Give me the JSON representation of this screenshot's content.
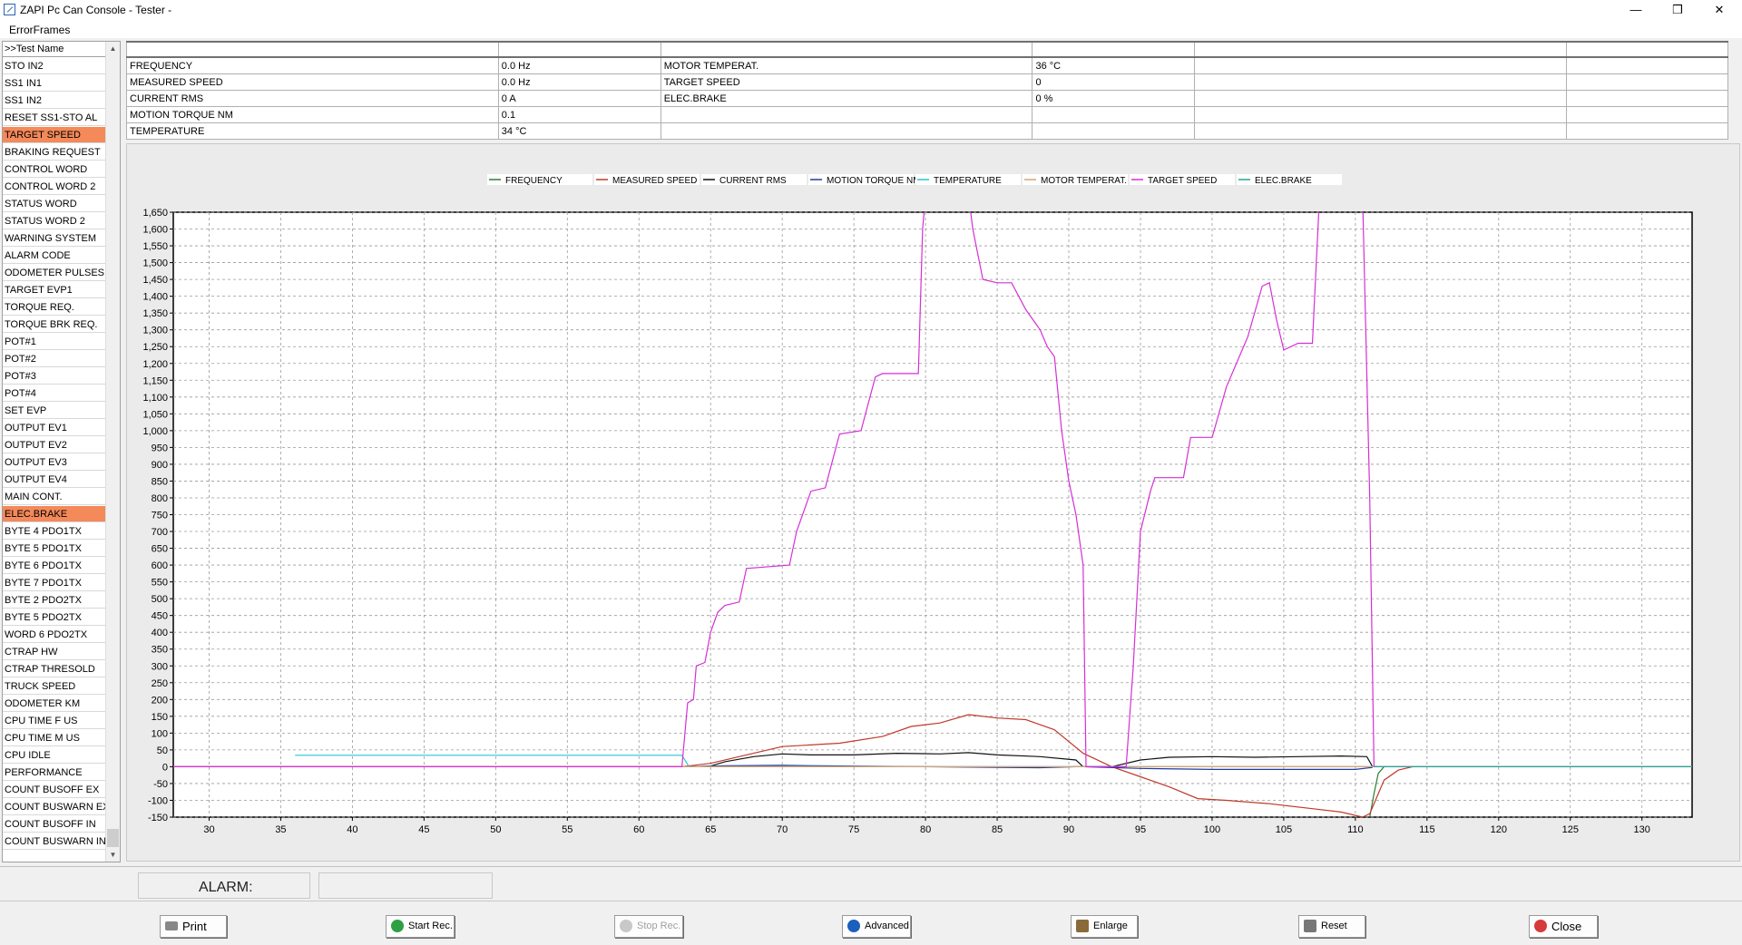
{
  "window": {
    "title": "ZAPI Pc Can Console - Tester -",
    "minimize": "—",
    "restore": "❒",
    "close": "✕"
  },
  "menu": {
    "items": [
      "ErrorFrames"
    ]
  },
  "sidebar": {
    "header": ">>Test Name",
    "items": [
      {
        "label": "STO IN2",
        "selected": false
      },
      {
        "label": "SS1 IN1",
        "selected": false
      },
      {
        "label": "SS1 IN2",
        "selected": false
      },
      {
        "label": "RESET SS1-STO AL",
        "selected": false
      },
      {
        "label": "TARGET SPEED",
        "selected": true
      },
      {
        "label": "BRAKING REQUEST",
        "selected": false
      },
      {
        "label": "CONTROL WORD",
        "selected": false
      },
      {
        "label": "CONTROL WORD 2",
        "selected": false
      },
      {
        "label": "STATUS WORD",
        "selected": false
      },
      {
        "label": "STATUS WORD 2",
        "selected": false
      },
      {
        "label": "WARNING SYSTEM",
        "selected": false
      },
      {
        "label": "ALARM CODE",
        "selected": false
      },
      {
        "label": "ODOMETER PULSES",
        "selected": false
      },
      {
        "label": "TARGET EVP1",
        "selected": false
      },
      {
        "label": "TORQUE REQ.",
        "selected": false
      },
      {
        "label": "TORQUE BRK REQ.",
        "selected": false
      },
      {
        "label": "POT#1",
        "selected": false
      },
      {
        "label": "POT#2",
        "selected": false
      },
      {
        "label": "POT#3",
        "selected": false
      },
      {
        "label": "POT#4",
        "selected": false
      },
      {
        "label": "SET    EVP",
        "selected": false
      },
      {
        "label": "OUTPUT EV1",
        "selected": false
      },
      {
        "label": "OUTPUT EV2",
        "selected": false
      },
      {
        "label": "OUTPUT EV3",
        "selected": false
      },
      {
        "label": "OUTPUT EV4",
        "selected": false
      },
      {
        "label": "MAIN CONT.",
        "selected": false
      },
      {
        "label": "ELEC.BRAKE",
        "selected": true
      },
      {
        "label": "BYTE 4 PDO1TX",
        "selected": false
      },
      {
        "label": "BYTE 5 PDO1TX",
        "selected": false
      },
      {
        "label": "BYTE 6 PDO1TX",
        "selected": false
      },
      {
        "label": "BYTE 7 PDO1TX",
        "selected": false
      },
      {
        "label": "BYTE 2 PDO2TX",
        "selected": false
      },
      {
        "label": "BYTE 5 PDO2TX",
        "selected": false
      },
      {
        "label": "WORD 6 PDO2TX",
        "selected": false
      },
      {
        "label": "CTRAP HW",
        "selected": false
      },
      {
        "label": "CTRAP THRESOLD",
        "selected": false
      },
      {
        "label": "TRUCK SPEED",
        "selected": false
      },
      {
        "label": "ODOMETER    KM",
        "selected": false
      },
      {
        "label": "CPU TIME F  US",
        "selected": false
      },
      {
        "label": "CPU TIME M  US",
        "selected": false
      },
      {
        "label": "CPU IDLE",
        "selected": false
      },
      {
        "label": "PERFORMANCE",
        "selected": false
      },
      {
        "label": "COUNT BUSOFF  EX",
        "selected": false
      },
      {
        "label": "COUNT BUSWARN EX",
        "selected": false
      },
      {
        "label": "COUNT BUSOFF  IN",
        "selected": false
      },
      {
        "label": "COUNT BUSWARN IN",
        "selected": false
      }
    ]
  },
  "table": {
    "rows": [
      [
        "FREQUENCY",
        "0.0 Hz",
        "MOTOR TEMPERAT.",
        "36 °C",
        "",
        ""
      ],
      [
        "MEASURED SPEED",
        "0.0 Hz",
        "TARGET SPEED",
        "0",
        "",
        ""
      ],
      [
        "CURRENT RMS",
        "0 A",
        "ELEC.BRAKE",
        "0 %",
        "",
        ""
      ],
      [
        "MOTION TORQUE NM",
        "0.1",
        "",
        "",
        "",
        ""
      ],
      [
        "TEMPERATURE",
        "34 °C",
        "",
        "",
        "",
        ""
      ]
    ]
  },
  "chart_data": {
    "type": "line",
    "title": "",
    "xlabel": "",
    "ylabel": "",
    "xlim": [
      27.5,
      133.5
    ],
    "ylim": [
      -150,
      1650
    ],
    "x_ticks": [
      30,
      35,
      40,
      45,
      50,
      55,
      60,
      65,
      70,
      75,
      80,
      85,
      90,
      95,
      100,
      105,
      110,
      115,
      120,
      125,
      130
    ],
    "y_ticks": [
      -150,
      -100,
      -50,
      0,
      50,
      100,
      150,
      200,
      250,
      300,
      350,
      400,
      450,
      500,
      550,
      600,
      650,
      700,
      750,
      800,
      850,
      900,
      950,
      1000,
      1050,
      1100,
      1150,
      1200,
      1250,
      1300,
      1350,
      1400,
      1450,
      1500,
      1550,
      1600,
      1650
    ],
    "y_tick_labels": [
      "-150",
      "-100",
      "-50",
      "0",
      "50",
      "100",
      "150",
      "200",
      "250",
      "300",
      "350",
      "400",
      "450",
      "500",
      "550",
      "600",
      "650",
      "700",
      "750",
      "800",
      "850",
      "900",
      "950",
      "1,000",
      "1,050",
      "1,100",
      "1,150",
      "1,200",
      "1,250",
      "1,300",
      "1,350",
      "1,400",
      "1,450",
      "1,500",
      "1,550",
      "1,600",
      "1,650"
    ],
    "grid": true,
    "legend_position": "top",
    "series": [
      {
        "name": "FREQUENCY",
        "color": "#2e7d32",
        "points": [
          [
            111,
            -150
          ],
          [
            111.3,
            -80
          ],
          [
            111.6,
            -20
          ],
          [
            112,
            0
          ]
        ]
      },
      {
        "name": "MEASURED SPEED",
        "color": "#c0392b",
        "points": [
          [
            27.5,
            0
          ],
          [
            35,
            0
          ],
          [
            63,
            0
          ],
          [
            65,
            10
          ],
          [
            68,
            40
          ],
          [
            70,
            60
          ],
          [
            74,
            70
          ],
          [
            77,
            90
          ],
          [
            79,
            120
          ],
          [
            81,
            130
          ],
          [
            83,
            155
          ],
          [
            85,
            145
          ],
          [
            87,
            140
          ],
          [
            89,
            110
          ],
          [
            91,
            40
          ],
          [
            93,
            0
          ],
          [
            95,
            -30
          ],
          [
            97,
            -60
          ],
          [
            99,
            -95
          ],
          [
            101,
            -100
          ],
          [
            104,
            -110
          ],
          [
            107,
            -125
          ],
          [
            109,
            -135
          ],
          [
            110.5,
            -150
          ],
          [
            111,
            -140
          ],
          [
            112,
            -40
          ],
          [
            113,
            -10
          ],
          [
            114,
            0
          ]
        ]
      },
      {
        "name": "CURRENT RMS",
        "color": "#111111",
        "points": [
          [
            63.5,
            0
          ],
          [
            65,
            2
          ],
          [
            66,
            15
          ],
          [
            68,
            30
          ],
          [
            70,
            38
          ],
          [
            72,
            35
          ],
          [
            75,
            35
          ],
          [
            78,
            40
          ],
          [
            81,
            38
          ],
          [
            83,
            42
          ],
          [
            85,
            35
          ],
          [
            88,
            30
          ],
          [
            90.5,
            20
          ],
          [
            91,
            0
          ],
          [
            93,
            0
          ],
          [
            95,
            20
          ],
          [
            97,
            28
          ],
          [
            100,
            30
          ],
          [
            103,
            28
          ],
          [
            106,
            30
          ],
          [
            109,
            32
          ],
          [
            110.8,
            30
          ],
          [
            111.2,
            0
          ]
        ]
      },
      {
        "name": "MOTION TORQUE NM",
        "color": "#1f3a9f",
        "points": [
          [
            63.5,
            0
          ],
          [
            66,
            3
          ],
          [
            70,
            4
          ],
          [
            75,
            2
          ],
          [
            80,
            0
          ],
          [
            85,
            -2
          ],
          [
            88,
            -3
          ],
          [
            90.5,
            0
          ],
          [
            91,
            0
          ],
          [
            95,
            -5
          ],
          [
            100,
            -8
          ],
          [
            105,
            -8
          ],
          [
            110,
            -8
          ],
          [
            111.2,
            -2
          ]
        ]
      },
      {
        "name": "TEMPERATURE",
        "color": "#28c3d6",
        "points": [
          [
            36,
            34
          ],
          [
            63,
            34
          ],
          [
            63.5,
            0
          ],
          [
            133.5,
            0
          ]
        ]
      },
      {
        "name": "MOTOR TEMPERAT.",
        "color": "#d4a478",
        "points": [
          [
            27.5,
            0
          ],
          [
            133.5,
            0
          ]
        ]
      },
      {
        "name": "TARGET SPEED",
        "color": "#d62fd6",
        "points": [
          [
            27.5,
            0
          ],
          [
            45,
            0
          ],
          [
            63,
            0
          ],
          [
            63.4,
            190
          ],
          [
            63.8,
            200
          ],
          [
            64,
            300
          ],
          [
            64.6,
            310
          ],
          [
            65,
            400
          ],
          [
            65.5,
            460
          ],
          [
            66,
            480
          ],
          [
            67,
            490
          ],
          [
            67.5,
            590
          ],
          [
            70.5,
            600
          ],
          [
            71,
            700
          ],
          [
            72,
            820
          ],
          [
            73,
            830
          ],
          [
            74,
            990
          ],
          [
            75.5,
            1000
          ],
          [
            76.5,
            1160
          ],
          [
            77,
            1170
          ],
          [
            79.5,
            1170
          ],
          [
            79.8,
            1600
          ],
          [
            80,
            1700
          ],
          [
            83,
            1700
          ],
          [
            83.3,
            1600
          ],
          [
            84,
            1450
          ],
          [
            85,
            1440
          ],
          [
            86,
            1440
          ],
          [
            87,
            1360
          ],
          [
            88,
            1300
          ],
          [
            88.5,
            1250
          ],
          [
            89,
            1220
          ],
          [
            89.5,
            1000
          ],
          [
            90,
            850
          ],
          [
            90.5,
            750
          ],
          [
            91,
            600
          ],
          [
            91.2,
            0
          ],
          [
            94,
            0
          ],
          [
            94.5,
            300
          ],
          [
            95,
            700
          ],
          [
            95.7,
            820
          ],
          [
            96,
            860
          ],
          [
            98,
            860
          ],
          [
            98.5,
            980
          ],
          [
            100,
            980
          ],
          [
            101,
            1130
          ],
          [
            102.5,
            1280
          ],
          [
            103.5,
            1430
          ],
          [
            104,
            1440
          ],
          [
            104.5,
            1330
          ],
          [
            105,
            1240
          ],
          [
            106,
            1260
          ],
          [
            107,
            1260
          ],
          [
            107.5,
            1700
          ],
          [
            110.5,
            1700
          ],
          [
            111,
            800
          ],
          [
            111.3,
            0
          ],
          [
            111.5,
            0
          ]
        ]
      },
      {
        "name": "ELEC.BRAKE",
        "color": "#2aa198",
        "points": [
          [
            111.3,
            0
          ],
          [
            133.5,
            0
          ]
        ]
      }
    ]
  },
  "alarm": {
    "label": "ALARM:",
    "value": ""
  },
  "buttons": {
    "print": "Print",
    "start_rec": "Start Rec.",
    "stop_rec": "Stop Rec.",
    "advanced": "Advanced",
    "enlarge": "Enlarge",
    "reset": "Reset",
    "close": "Close"
  },
  "colors": {
    "selected_row": "#f4895a",
    "plot_bg": "#ffffff",
    "panel_bg": "#ebebeb"
  }
}
